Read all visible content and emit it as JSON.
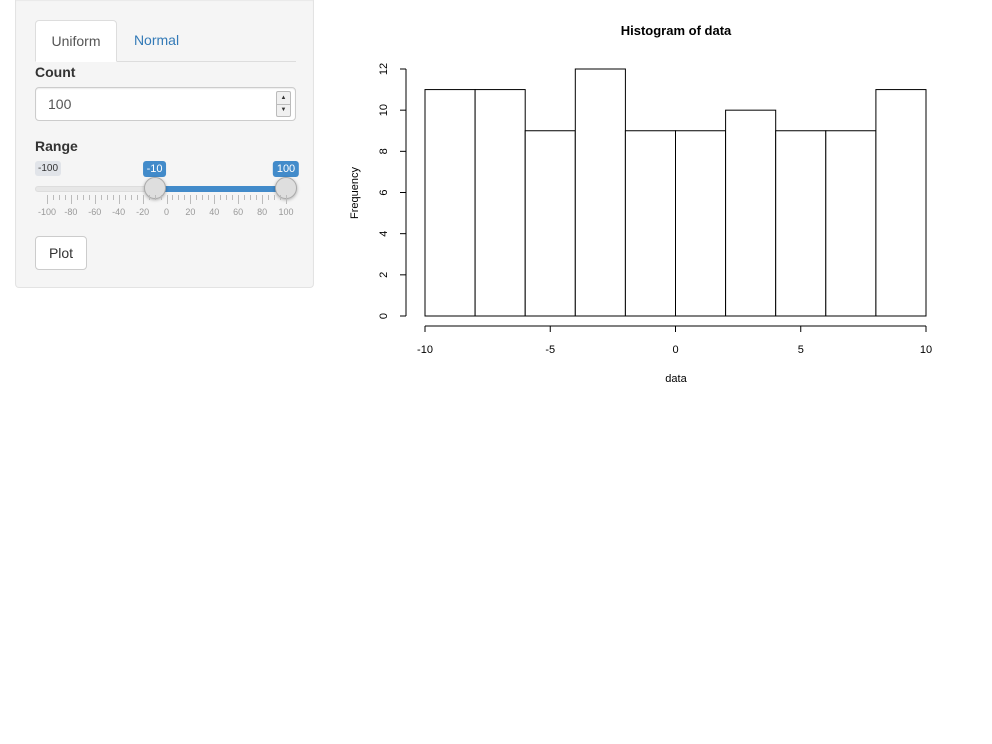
{
  "tabs": [
    {
      "label": "Uniform",
      "active": true
    },
    {
      "label": "Normal",
      "active": false
    }
  ],
  "count": {
    "label": "Count",
    "value": "100"
  },
  "range": {
    "label": "Range",
    "min": -100,
    "max": 100,
    "min_label": "-100",
    "low": -10,
    "high": 100,
    "low_label": "-10",
    "high_label": "100",
    "ticks": [
      "-100",
      "-80",
      "-60",
      "-40",
      "-20",
      "0",
      "20",
      "40",
      "60",
      "80",
      "100"
    ]
  },
  "plot_button": {
    "label": "Plot"
  },
  "colors": {
    "accent": "#428bca",
    "link": "#337ab7"
  },
  "chart_data": {
    "type": "bar",
    "title": "Histogram of data",
    "xlabel": "data",
    "ylabel": "Frequency",
    "bins": [
      {
        "x0": -10,
        "x1": -8,
        "count": 11
      },
      {
        "x0": -8,
        "x1": -6,
        "count": 11
      },
      {
        "x0": -6,
        "x1": -4,
        "count": 9
      },
      {
        "x0": -4,
        "x1": -2,
        "count": 12
      },
      {
        "x0": -2,
        "x1": 0,
        "count": 9
      },
      {
        "x0": 0,
        "x1": 2,
        "count": 9
      },
      {
        "x0": 2,
        "x1": 4,
        "count": 10
      },
      {
        "x0": 4,
        "x1": 6,
        "count": 9
      },
      {
        "x0": 6,
        "x1": 8,
        "count": 9
      },
      {
        "x0": 8,
        "x1": 10,
        "count": 11
      }
    ],
    "xlim": [
      -10,
      10
    ],
    "ylim": [
      0,
      12
    ],
    "xticks": [
      -10,
      -5,
      0,
      5,
      10
    ],
    "yticks": [
      0,
      2,
      4,
      6,
      8,
      10,
      12
    ],
    "grid": false
  }
}
